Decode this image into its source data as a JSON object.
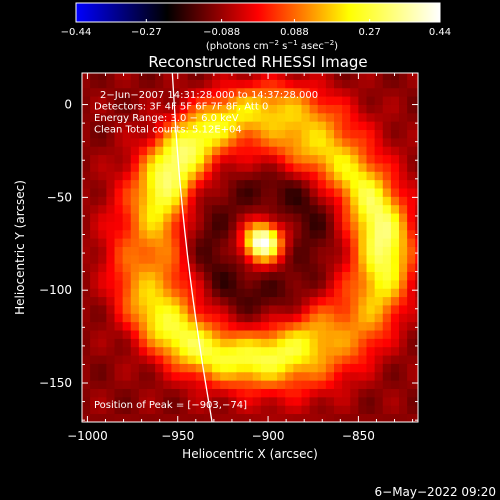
{
  "chart_data": {
    "type": "heatmap",
    "title": "Reconstructed RHESSI Image",
    "xlabel": "Heliocentric X (arcsec)",
    "ylabel": "Heliocentric Y (arcsec)",
    "xlim": [
      -1003,
      -817
    ],
    "ylim": [
      -171,
      17
    ],
    "x_ticks": [
      -1000,
      -950,
      -900,
      -850
    ],
    "x_tick_labels": [
      "−1000",
      "−950",
      "−900",
      "−850"
    ],
    "y_ticks": [
      0,
      -50,
      -100,
      -150
    ],
    "y_tick_labels": [
      "0",
      "−50",
      "−100",
      "−150"
    ],
    "colorbar": {
      "min": -0.44,
      "max": 0.44,
      "ticks": [
        -0.44,
        -0.27,
        -0.088,
        0.088,
        0.27,
        0.44
      ],
      "tick_labels": [
        "−0.44",
        "−0.27",
        "−0.088",
        "0.088",
        "0.27",
        "0.44"
      ],
      "units_prefix": "(photons cm",
      "units_exp1": "−2",
      "units_mid": " s",
      "units_exp2": "−1",
      "units_mid2": " asec",
      "units_exp3": "−2",
      "units_suffix": ")"
    },
    "annotations": [
      "2−Jun−2007 14:31:28.000 to 14:37:28.000",
      "Detectors: 3F 4F 5F 6F 7F 8F, Att 0",
      "Energy Range: 3.0 − 6.0 keV",
      "Clean    Total counts: 5.12E+04"
    ],
    "peak_label": "Position of Peak = [−903,−74]",
    "source": {
      "peak_x": -903,
      "peak_y": -74,
      "peak_value": 0.44,
      "core_sigma_arcsec": 7,
      "ring_radius_arcsec": 65,
      "ring_value": 0.22,
      "trough_radius_arcsec": 30,
      "trough_value": -0.16,
      "background_value": -0.1
    },
    "limb": [
      [
        -953,
        17
      ],
      [
        -950,
        -30
      ],
      [
        -945,
        -80
      ],
      [
        -938,
        -130
      ],
      [
        -931,
        -171
      ]
    ],
    "colormap": [
      "#0000ff",
      "#000000",
      "#ff0000",
      "#ffff00",
      "#ffffff"
    ]
  },
  "timestamp": "6−May−2022 09:20"
}
